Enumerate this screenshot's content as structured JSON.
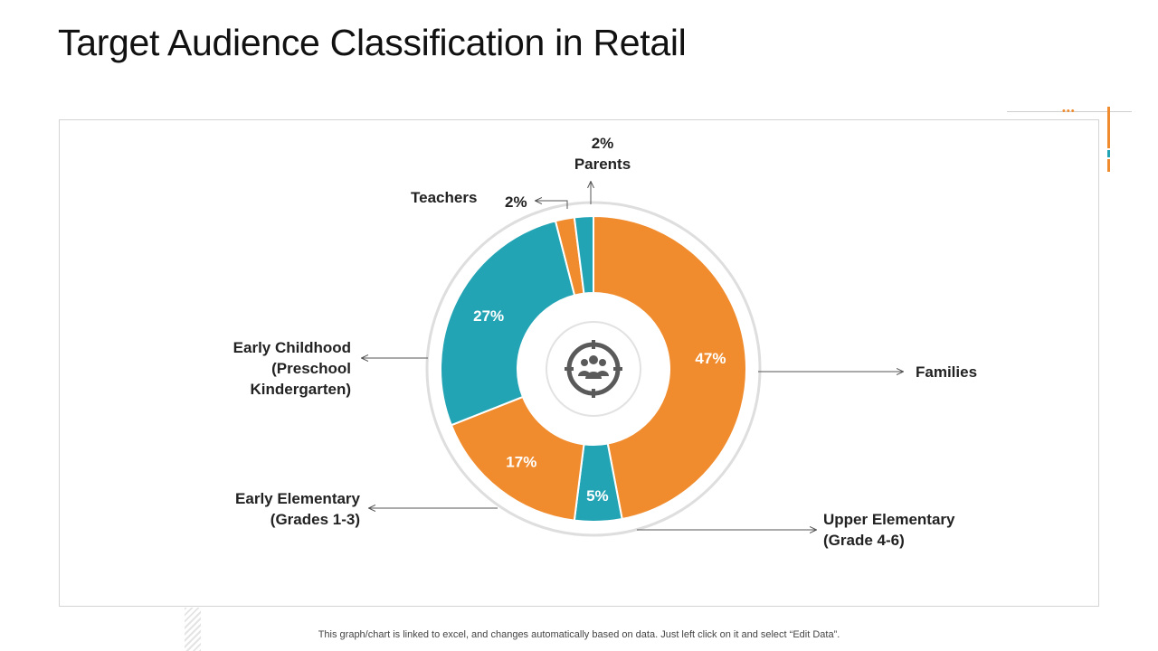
{
  "title": "Target Audience Classification in Retail",
  "footnote": "This graph/chart is linked to excel,  and changes automatically based on data. Just left click on it and select “Edit Data”.",
  "center_icon": "group-target-icon",
  "colors": {
    "orange": "#f08c2e",
    "teal": "#23a4b4",
    "icon": "#5a5a5a"
  },
  "chart_data": {
    "type": "pie",
    "variant": "donut",
    "title": "Target Audience Classification in Retail",
    "categories": [
      "Families",
      "Upper Elementary (Grade 4-6)",
      "Early Elementary (Grades 1-3)",
      "Early Childhood (Preschool Kindergarten)",
      "Teachers",
      "Parents"
    ],
    "values": [
      47,
      5,
      17,
      27,
      2,
      2
    ],
    "value_labels": [
      "47%",
      "5%",
      "17%",
      "27%",
      "2%",
      "2%"
    ],
    "slice_colors": [
      "#f08c2e",
      "#23a4b4",
      "#f08c2e",
      "#23a4b4",
      "#f08c2e",
      "#23a4b4"
    ],
    "labels": {
      "families": [
        "Families"
      ],
      "upper_elementary": [
        "Upper Elementary",
        "(Grade 4-6)"
      ],
      "early_elementary": [
        "Early Elementary",
        "(Grades 1-3)"
      ],
      "early_childhood": [
        "Early Childhood",
        "(Preschool",
        "Kindergarten)"
      ],
      "teachers": [
        "Teachers"
      ],
      "parents": [
        "Parents"
      ]
    },
    "legend": "none"
  }
}
